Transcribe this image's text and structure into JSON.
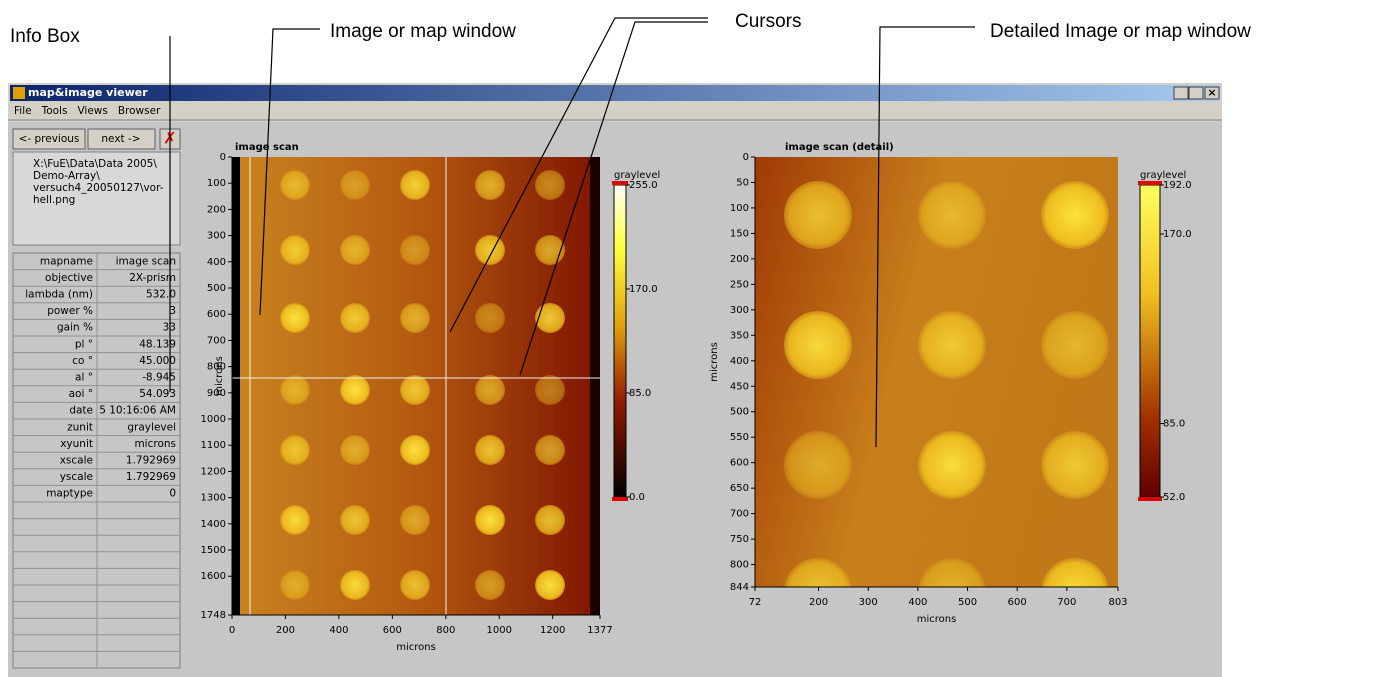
{
  "annotations": [
    "Info Box",
    "Image or map window",
    "Cursors",
    "Detailed Image or map window"
  ],
  "window": {
    "title": "map&image viewer",
    "menu": [
      "File",
      "Tools",
      "Views",
      "Browser"
    ],
    "buttons": [
      "<- previous",
      "next ->"
    ],
    "path": [
      "X:\\FuE\\Data\\Data 2005\\",
      "Demo-Array\\",
      "versuch4_20050127\\vor-",
      "hell.png"
    ],
    "info_table": {
      "rows": [
        [
          "mapname",
          "image scan"
        ],
        [
          "objective",
          "2X-prism"
        ],
        [
          "lambda (nm)",
          "532.0"
        ],
        [
          "power %",
          "3"
        ],
        [
          "gain %",
          "33"
        ],
        [
          "pl °",
          "48.139"
        ],
        [
          "co °",
          "45.000"
        ],
        [
          "al °",
          "-8.945"
        ],
        [
          "aoi °",
          "54.093"
        ],
        [
          "date",
          "5 10:16:06 AM"
        ],
        [
          "zunit",
          "graylevel"
        ],
        [
          "xyunit",
          "microns"
        ],
        [
          "xscale",
          "1.792969"
        ],
        [
          "yscale",
          "1.792969"
        ],
        [
          "maptype",
          "0"
        ]
      ]
    }
  },
  "plots": [
    {
      "title": "image scan",
      "x_label": "microns",
      "y_label": "microns",
      "xticks": [
        0,
        200,
        400,
        600,
        800,
        1000,
        1200,
        1377
      ],
      "yticks": [
        0,
        100,
        200,
        300,
        400,
        500,
        600,
        700,
        800,
        900,
        1000,
        1100,
        1200,
        1300,
        1400,
        1500,
        1600,
        1748
      ],
      "colorbar": {
        "label": "graylevel",
        "ticks": [
          {
            "value": 255,
            "label": "255.0"
          },
          {
            "value": 170,
            "label": "170.0"
          },
          {
            "value": 85,
            "label": "85.0"
          },
          {
            "value": 0,
            "label": "0.0"
          }
        ]
      }
    },
    {
      "title": "image scan (detail)",
      "x_label": "microns",
      "y_label": "microns",
      "xticks": [
        72,
        200,
        300,
        400,
        500,
        600,
        700,
        803
      ],
      "yticks": [
        0,
        50,
        100,
        150,
        200,
        250,
        300,
        350,
        400,
        450,
        500,
        550,
        600,
        650,
        700,
        750,
        800,
        844
      ],
      "colorbar": {
        "label": "graylevel",
        "ticks": [
          {
            "value": 192,
            "label": "192.0"
          },
          {
            "value": 170,
            "label": "170.0"
          },
          {
            "value": 85,
            "label": "85.0"
          },
          {
            "value": 52,
            "label": "52.0"
          }
        ]
      }
    }
  ]
}
